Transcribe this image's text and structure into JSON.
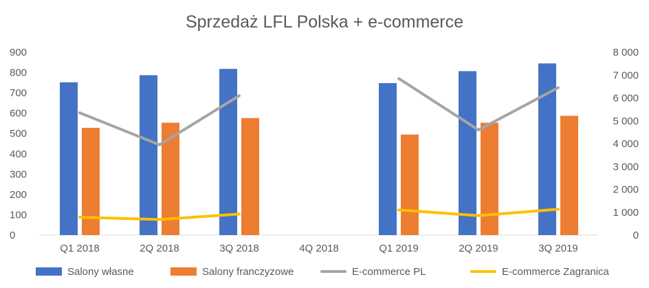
{
  "chart_data": {
    "type": "bar",
    "title": "Sprzedaż LFL Polska + e-commerce",
    "categories": [
      "Q1 2018",
      "2Q 2018",
      "3Q 2018",
      "4Q 2018",
      "Q1 2019",
      "2Q 2019",
      "3Q 2019"
    ],
    "y_left": {
      "range": [
        0,
        900
      ],
      "ticks": [
        "0",
        "100",
        "200",
        "300",
        "400",
        "500",
        "600",
        "700",
        "800",
        "900"
      ]
    },
    "y_right": {
      "range": [
        0,
        8000
      ],
      "ticks": [
        "0",
        "1 000",
        "2 000",
        "3 000",
        "4 000",
        "5 000",
        "6 000",
        "7 000",
        "8 000"
      ]
    },
    "series": [
      {
        "name": "Salony własne",
        "kind": "bar",
        "axis": "left",
        "color": "#4472C4",
        "values": [
          752,
          787,
          818,
          null,
          748,
          807,
          845
        ]
      },
      {
        "name": "Salony franczyzowe",
        "kind": "bar",
        "axis": "left",
        "color": "#ED7D31",
        "values": [
          528,
          553,
          576,
          null,
          495,
          553,
          587
        ]
      },
      {
        "name": "E-commerce PL",
        "kind": "line",
        "axis": "right",
        "color": "#A5A5A5",
        "values": [
          5350,
          3950,
          6100,
          null,
          6850,
          4600,
          6450
        ]
      },
      {
        "name": "E-commerce Zagranica",
        "kind": "line",
        "axis": "right",
        "color": "#FFC000",
        "values": [
          780,
          680,
          920,
          null,
          1100,
          850,
          1130
        ]
      }
    ],
    "legend_position": "bottom",
    "grid": false
  }
}
